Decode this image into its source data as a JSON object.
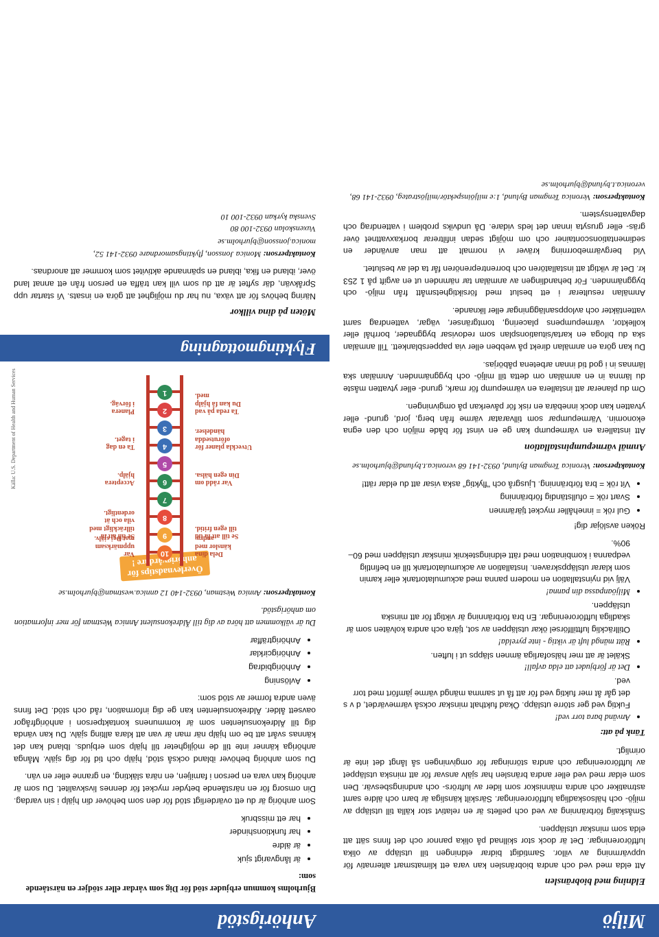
{
  "left": {
    "header": "Miljö",
    "h1": "Eldning med biobränslen",
    "p1": "Att elda med ved och andra biobränslen kan vara ett klimatsmart alternativ för uppvärmning av villor. Samtidigt bidrar eldningen till utsläpp av olika luftföroreningar. Det är dock stor skillnad på olika pannor och det finns sätt att elda som minskar utsläppen.",
    "p2": "Småskalig förbränning av ved och pellets är en relativt stor källa till utsläpp av miljö- och hälsoskadliga luftföroreningar. Särskilt känsliga är barn och äldre samt astmatiker och andra människor som lider av luftrörs- och andningsbesvär. Den som eldar med ved eller andra bränslen har själv ansvar för att minska utsläppet av luftföroreningar och andra störningar för omgivningen så långt det inte är orimligt.",
    "h2": "Tänk på att:",
    "tips": [
      {
        "title": "Använd bara torr ved!",
        "text": "Fuktig ved ger större utsläpp. Ökad fukthalt minskar också värmevärdet, d v s det går åt mer fuktig ved för att få ut samma mängd värme jämfört med torr ved."
      },
      {
        "title": "Det är förbjudet att elda avfall!",
        "text": "Skälet är att mer hälsofarliga ämnen släpps ut i luften."
      },
      {
        "title": "Rätt mängd luft är viktig - inte pyrelda!",
        "text": "Otillräcklig lufttillförsel ökar utsläppen av sot, tjära och andra kolväten som är skadliga luftföroreningar. En bra förbränning är viktigt för att minska utsläppen."
      },
      {
        "title": "Miljöanpassa din panna!",
        "text": "Välj vid nyinstallation en modern panna med ackumulatortank eller kamin som klarar utsläppskraven. Installation av ackumulatortank till en befintlig vedpanna i kombination med rätt eldningsteknik minskar utsläppen med 60–90%."
      }
    ],
    "smokeIntro": "Röken avslöjar dig!",
    "smoke": [
      "Gul rök = innehåller mycket tjärämnen",
      "Svart rök = ofullständig förbränning",
      "Vit rök = bra förbränning. Ljusgrå och \"flyktig\" aska visar att du eldar rätt!"
    ],
    "contact1Label": "Kontaktperson:",
    "contact1": " Veronica Tengman Bylund, 0932-141 68 veronica.t.bylund@bjurholm.se",
    "h3": "Anmäl värmepumpinstallation",
    "p3": "Att installera en värmepump kan ge en vinst för både miljön och den egna ekonomin. Värmepumpar som tillvaratar värme från berg, jord, grund- eller ytvatten kan dock innebära en risk för påverkan på omgivningen.",
    "p4": "Om du planerar att installera en värmepump för mark, grund- eller ytvatten måste du lämna in en anmälan om detta till miljö- och byggnämnden. Anmälan ska lämnas in i god tid innan arbetena påbörjas.",
    "p5": "Du kan göra en anmälan direkt på webben eller via pappersblankett. Till anmälan ska du bifoga en karta/situationsplan som redovisar byggnader, borrhål eller kollektor, värmepumpens placering, tomtgränser, vägar, vattendrag samt vattentäkter och avloppsanläggningar eller liknande.",
    "p6": "Anmälan resulterar i ett beslut med försiktighetsmått från miljö- och byggnämnden. För behandlingen av anmälan tar nämnden ut en avgift på 1 253 kr. Det är viktigt att installatören och borrentreprenören får ta del av beslutet.",
    "p7": "Vid bergvärmeborrning kräver vi normalt att man använder en sedimentationscontainer och om möjligt sedan infiltrerar borrkaxvattnet över gräs- eller grusyta innan det leds vidare. Då undviks problem i vattendrag och dagvattensystem.",
    "contact2Label": "Kontaktperson:",
    "contact2": " Veronica Tengman Bylund, 1:e miljöinspektör/miljöstrateg, 0932-141 68, veronica.t.bylund@bjurholm.se"
  },
  "right": {
    "header": "Anhörigstöd",
    "intro": "Bjurholms kommun erbjuder stöd för Dig som vårdar eller stödjer en närstående som:",
    "bullets": [
      "är långvarigt sjuk",
      "är äldre",
      "har funktionshinder",
      "har ett missbruk"
    ],
    "p1": "Som anhörig är du ett ovärderligt stöd för den som behöver din hjälp i sin vardag. Din omsorg för en närstående betyder mycket för dennes livskvalitet. Du som är anhörig kan vara en person i familjen, en nära släkting, en granne eller en vän.",
    "p2": "Du som anhörig behöver ibland också stöd, hjälp och tid för dig själv. Många anhöriga känner inte till de möjligheter till hjälp som erbjuds. Ibland kan det kännas svårt att be om hjälp när man är van att klara allting själv. Du kan vända dig till Äldrekonsulenten som är kommunens kontaktperson i anhörigfrågor oavsett ålder. Äldrekonsulenten kan ge dig information, råd och stöd. Det finns även andra former av stöd som:",
    "bullets2": [
      "Avlösning",
      "Anhörigbidrag",
      "Anhörigcirklar",
      "Anhörigträffar"
    ],
    "p3": "Du är välkommen att höra av dig till Äldrekonsulent Annica Westman för mer information om anhörigstöd.",
    "contact1Label": "Kontaktperson:",
    "contact1": " Annica Westman, 0932-140 12 annica.westman@bjurholm.se",
    "ladder": {
      "title1": "Överlevnadstips för",
      "title2": "anhörigvårdare !",
      "credit": "Källa: U.S. Department of Health and Human Services",
      "steps": [
        {
          "n": "10",
          "color": "#f07030",
          "labelL": "Dela dina\nkänslor med\nandra.",
          "labelR": "Var\nuppmärksam\nmot Dej själv."
        },
        {
          "n": "9",
          "color": "#f4a53a",
          "labelL": "Se till att få tid\ntill egen fritid.",
          "labelR": "Se till att få\ntillräckligt med\nvila och ät\nordentligt."
        },
        {
          "n": "8",
          "color": "#e74c3c",
          "labelL": "",
          "labelR": ""
        },
        {
          "n": "7",
          "color": "#2e8b57",
          "labelL": "",
          "labelR": ""
        },
        {
          "n": "6",
          "color": "#2e8b57",
          "labelL": "Var rådd om\nDin egen hälsa.",
          "labelR": "Acceptera\nhjälp."
        },
        {
          "n": "5",
          "color": "#b04aa8",
          "labelL": "",
          "labelR": ""
        },
        {
          "n": "4",
          "color": "#3b6fb6",
          "labelL": "Utveckla planer för\noförutsedda\nhändelser.",
          "labelR": "Ta en dag\ni taget."
        },
        {
          "n": "3",
          "color": "#3b6fb6",
          "labelL": "",
          "labelR": ""
        },
        {
          "n": "2",
          "color": "#d44",
          "labelL": "Ta reda på vad\nDu kan få hjälp\nmed.",
          "labelR": "Planera\ni förväg."
        },
        {
          "n": "1",
          "color": "#2e8b57",
          "labelL": "",
          "labelR": ""
        }
      ]
    },
    "subheader": "Flyktingmottagning",
    "h4": "Möten på dina villkor",
    "p4": "Näring behövs för att växa, nu har du möjlighet att göra en insats. Vi startar upp Språkvän, där syftet är att du som vill kan träffa en person från ett annat land över, ibland en fika, ibland en spännande aktivitet som kommer att anordnas.",
    "contact2Label": "Kontaktperson:",
    "contact2a": " Monica Jonsson, flyktingsamordnare 0932-141 52, monica.jonsson@bjurholm.se",
    "contact2b": "Vuxenskolan 0932-100 80",
    "contact2c": "Svenska kyrkan 0932-100 10"
  },
  "colors": {
    "headerBg": "#2f5a9e",
    "ladderRail": "#c0392b",
    "ladderBanner": "#f4a53a"
  }
}
